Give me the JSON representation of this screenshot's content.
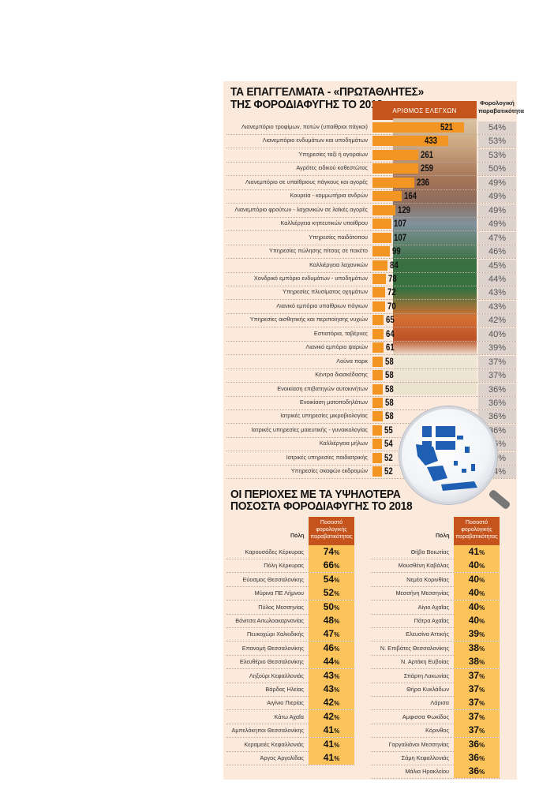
{
  "chart_data": [
    {
      "type": "bar",
      "title": "ΤΑ ΕΠΑΓΓΕΛΜΑΤΑ - «ΠΡΩΤΑΘΛΗΤΕΣ» ΤΗΣ ΦΟΡΟΔΙΑΦΥΓΗΣ ΤΟ 2018",
      "orientation": "horizontal",
      "series_headers": [
        "ΑΡΙΘΜΟΣ ΕΛΕΓΧΩΝ",
        "Φορολογική παραβατικότητα"
      ],
      "categories": [
        "Λιανεμπόριο τροφίμων, ποτών (υπαίθριοι πάγκοι)",
        "Λιανεμπόριο ενδυμάτων και υποδημάτων",
        "Υπηρεσίες ταξί ή αγοραίων",
        "Αγρότες ειδικού καθεστώτος",
        "Λιανεμπόριο σε υπαίθριους πάγκους και αγορές",
        "Κουρεία - κομμωτήρια ανδρών",
        "Λιανεμπόριο φρούτων - λαχανικών σε λαϊκές αγορές",
        "Καλλιέργεια κηπευτικών υπαίθρου",
        "Υπηρεσίες παιδότοπου",
        "Υπηρεσίες πώλησης πίτσας σε πακέτο",
        "Καλλιέργεια λαχανικών",
        "Χονδρικό εμπόριο ενδυμάτων - υποδημάτων",
        "Υπηρεσίες πλυσίματος οχημάτων",
        "Λιανικό εμπόριο υπαίθριων πάγκων",
        "Υπηρεσίες αισθητικής και περιποίησης νυχιών",
        "Εστιατόρια, ταβέρνες",
        "Λιανικό εμπόριο ψαριών",
        "Λούνα παρκ",
        "Κέντρα διασκέδασης",
        "Ενοικίαση επιβατηγών αυτοκινήτων",
        "Ενοικίαση μοτοποδηλάτων",
        "Ιατρικές υπηρεσίες μικροβιολογίας",
        "Ιατρικές υπηρεσίες μαιευτικής - γυναικολογίας",
        "Καλλιέργεια μήλων",
        "Ιατρικές υπηρεσίες παιδιατρικής",
        "Υπηρεσίες σκαφών εκδρομών"
      ],
      "series": [
        {
          "name": "ΑΡΙΘΜΟΣ ΕΛΕΓΧΩΝ",
          "values": [
            521,
            433,
            261,
            259,
            236,
            164,
            129,
            107,
            107,
            99,
            84,
            78,
            72,
            70,
            65,
            64,
            61,
            58,
            58,
            58,
            58,
            58,
            55,
            54,
            52,
            52
          ]
        },
        {
          "name": "Φορολογική παραβατικότητα",
          "unit": "%",
          "values": [
            54,
            53,
            53,
            50,
            49,
            49,
            49,
            49,
            47,
            46,
            45,
            44,
            43,
            43,
            42,
            40,
            39,
            37,
            37,
            36,
            36,
            36,
            36,
            35,
            35,
            34
          ]
        }
      ]
    },
    {
      "type": "table",
      "title": "ΟΙ ΠΕΡΙΟΧΕΣ ΜΕ ΤΑ ΥΨΗΛΟΤΕΡΑ ΠΟΣΟΣΤΑ ΦΟΡΟΔΙΑΦΥΓΗΣ ΤΟ 2018",
      "columns": [
        "Πόλη",
        "Ποσοστό φορολογικής παραβατικότητας"
      ],
      "rows": [
        [
          "Καρουσάδες Κέρκυρας",
          74
        ],
        [
          "Πόλη Κέρκυρας",
          66
        ],
        [
          "Εύοσμος Θεσσαλονίκης",
          54
        ],
        [
          "Μύρινα ΠΕ Λήμνου",
          52
        ],
        [
          "Πύλος Μεσσηνίας",
          50
        ],
        [
          "Βόνιτσα Αιτωλοακαρνανίας",
          48
        ],
        [
          "Πευκοχώρι Χαλκιδικής",
          47
        ],
        [
          "Επανομή Θεσσαλονίκης",
          46
        ],
        [
          "Ελευθέριο Θεσσαλονίκης",
          44
        ],
        [
          "Ληξούρι Κεφαλλονιάς",
          43
        ],
        [
          "Βάρδας Ηλείας",
          43
        ],
        [
          "Αιγίνιο Πιερίας",
          42
        ],
        [
          "Κάτω Αχαΐα",
          42
        ],
        [
          "Αμπελόκηποι Θεσσαλονίκης",
          41
        ],
        [
          "Κεραμειές Κεφαλλονιάς",
          41
        ],
        [
          "Άργος Αργολίδας",
          41
        ],
        [
          "Θήβα Βοιωτίας",
          41
        ],
        [
          "Μουσθένη Καβάλας",
          40
        ],
        [
          "Νεμέα Κορινθίας",
          40
        ],
        [
          "Μεσσήνη Μεσσηνίας",
          40
        ],
        [
          "Αίγιο Αχαΐας",
          40
        ],
        [
          "Πάτρα Αχαΐας",
          40
        ],
        [
          "Ελευσίνα Αττικής",
          39
        ],
        [
          "Ν. Επιβάτες Θεσσαλονίκης",
          38
        ],
        [
          "Ν. Αρτάκη Ευβοίας",
          38
        ],
        [
          "Σπάρτη Λακωνίας",
          37
        ],
        [
          "Θήρα Κυκλάδων",
          37
        ],
        [
          "Λάρισα",
          37
        ],
        [
          "Αμφισσα Φωκίδος",
          37
        ],
        [
          "Κόρινθος",
          37
        ],
        [
          "Γαργαλιάνοι Μεσσηνίας",
          36
        ],
        [
          "Σάμη Κεφαλλονιάς",
          36
        ],
        [
          "Μάλια Ηρακλείου",
          36
        ]
      ]
    }
  ],
  "section1": {
    "title_line1": "ΤΑ ΕΠΑΓΓΕΛΜΑΤΑ - «ΠΡΩΤΑΘΛΗΤΕΣ»",
    "title_line2": "ΤΗΣ ΦΟΡΟΔΙΑΦΥΓΗΣ ΤΟ 2018",
    "count_header": "ΑΡΙΘΜΟΣ ΕΛΕΓΧΩΝ",
    "pct_header_line1": "Φορολογική",
    "pct_header_line2": "παραβατικότητα",
    "rows": [
      {
        "label": "Λιανεμπόριο τροφίμων, ποτών (υπαίθριοι πάγκοι)",
        "count": "521",
        "pct": "54%"
      },
      {
        "label": "Λιανεμπόριο ενδυμάτων και υποδημάτων",
        "count": "433",
        "pct": "53%"
      },
      {
        "label": "Υπηρεσίες ταξί ή αγοραίων",
        "count": "261",
        "pct": "53%"
      },
      {
        "label": "Αγρότες ειδικού καθεστώτος",
        "count": "259",
        "pct": "50%"
      },
      {
        "label": "Λιανεμπόριο σε υπαίθριους πάγκους και αγορές",
        "count": "236",
        "pct": "49%"
      },
      {
        "label": "Κουρεία - κομμωτήρια ανδρών",
        "count": "164",
        "pct": "49%"
      },
      {
        "label": "Λιανεμπόριο φρούτων - λαχανικών σε λαϊκές αγορές",
        "count": "129",
        "pct": "49%"
      },
      {
        "label": "Καλλιέργεια κηπευτικών υπαίθρου",
        "count": "107",
        "pct": "49%"
      },
      {
        "label": "Υπηρεσίες παιδότοπου",
        "count": "107",
        "pct": "47%"
      },
      {
        "label": "Υπηρεσίες πώλησης πίτσας σε πακέτο",
        "count": "99",
        "pct": "46%"
      },
      {
        "label": "Καλλιέργεια λαχανικών",
        "count": "84",
        "pct": "45%"
      },
      {
        "label": "Χονδρικό εμπόριο ενδυμάτων - υποδημάτων",
        "count": "78",
        "pct": "44%"
      },
      {
        "label": "Υπηρεσίες πλυσίματος οχημάτων",
        "count": "72",
        "pct": "43%"
      },
      {
        "label": "Λιανικό εμπόριο υπαίθριων πάγκων",
        "count": "70",
        "pct": "43%"
      },
      {
        "label": "Υπηρεσίες αισθητικής και περιποίησης νυχιών",
        "count": "65",
        "pct": "42%"
      },
      {
        "label": "Εστιατόρια, ταβέρνες",
        "count": "64",
        "pct": "40%"
      },
      {
        "label": "Λιανικό εμπόριο ψαριών",
        "count": "61",
        "pct": "39%"
      },
      {
        "label": "Λούνα παρκ",
        "count": "58",
        "pct": "37%"
      },
      {
        "label": "Κέντρα διασκέδασης",
        "count": "58",
        "pct": "37%"
      },
      {
        "label": "Ενοικίαση επιβατηγών αυτοκινήτων",
        "count": "58",
        "pct": "36%"
      },
      {
        "label": "Ενοικίαση μοτοποδηλάτων",
        "count": "58",
        "pct": "36%"
      },
      {
        "label": "Ιατρικές υπηρεσίες μικροβιολογίας",
        "count": "58",
        "pct": "36%"
      },
      {
        "label": "Ιατρικές υπηρεσίες μαιευτικής - γυναικολογίας",
        "count": "55",
        "pct": "36%"
      },
      {
        "label": "Καλλιέργεια μήλων",
        "count": "54",
        "pct": "35%"
      },
      {
        "label": "Ιατρικές υπηρεσίες παιδιατρικής",
        "count": "52",
        "pct": "35%"
      },
      {
        "label": "Υπηρεσίες σκαφών εκδρομών",
        "count": "52",
        "pct": "34%"
      }
    ]
  },
  "section2": {
    "title_line1": "ΟΙ ΠΕΡΙΟΧΕΣ ΜΕ ΤΑ ΥΨΗΛΟΤΕΡΑ",
    "title_line2": "ΠΟΣΟΣΤΑ ΦΟΡΟΔΙΑΦΥΓΗΣ ΤΟ 2018",
    "city_header": "Πόλη",
    "pct_header_line1": "Ποσοστό",
    "pct_header_line2": "φορολογικής",
    "pct_header_line3": "παραβατικότητας",
    "left": [
      {
        "city": "Καρουσάδες Κέρκυρας",
        "pct": "74"
      },
      {
        "city": "Πόλη Κέρκυρας",
        "pct": "66"
      },
      {
        "city": "Εύοσμος Θεσσαλονίκης",
        "pct": "54"
      },
      {
        "city": "Μύρινα ΠΕ Λήμνου",
        "pct": "52"
      },
      {
        "city": "Πύλος Μεσσηνίας",
        "pct": "50"
      },
      {
        "city": "Βόνιτσα Αιτωλοακαρνανίας",
        "pct": "48"
      },
      {
        "city": "Πευκοχώρι Χαλκιδικής",
        "pct": "47"
      },
      {
        "city": "Επανομή Θεσσαλονίκης",
        "pct": "46"
      },
      {
        "city": "Ελευθέριο Θεσσαλονίκης",
        "pct": "44"
      },
      {
        "city": "Ληξούρι Κεφαλλονιάς",
        "pct": "43"
      },
      {
        "city": "Βάρδας Ηλείας",
        "pct": "43"
      },
      {
        "city": "Αιγίνιο Πιερίας",
        "pct": "42"
      },
      {
        "city": "Κάτω Αχαΐα",
        "pct": "42"
      },
      {
        "city": "Αμπελόκηποι Θεσσαλονίκης",
        "pct": "41"
      },
      {
        "city": "Κεραμειές Κεφαλλονιάς",
        "pct": "41"
      },
      {
        "city": "Άργος Αργολίδας",
        "pct": "41"
      }
    ],
    "right": [
      {
        "city": "Θήβα Βοιωτίας",
        "pct": "41"
      },
      {
        "city": "Μουσθένη Καβάλας",
        "pct": "40"
      },
      {
        "city": "Νεμέα Κορινθίας",
        "pct": "40"
      },
      {
        "city": "Μεσσήνη Μεσσηνίας",
        "pct": "40"
      },
      {
        "city": "Αίγιο Αχαΐας",
        "pct": "40"
      },
      {
        "city": "Πάτρα Αχαΐας",
        "pct": "40"
      },
      {
        "city": "Ελευσίνα Αττικής",
        "pct": "39"
      },
      {
        "city": "Ν. Επιβάτες Θεσσαλονίκης",
        "pct": "38"
      },
      {
        "city": "Ν. Αρτάκη Ευβοίας",
        "pct": "38"
      },
      {
        "city": "Σπάρτη Λακωνίας",
        "pct": "37"
      },
      {
        "city": "Θήρα Κυκλάδων",
        "pct": "37"
      },
      {
        "city": "Λάρισα",
        "pct": "37"
      },
      {
        "city": "Αμφισσα Φωκίδος",
        "pct": "37"
      },
      {
        "city": "Κόρινθος",
        "pct": "37"
      },
      {
        "city": "Γαργαλιάνοι Μεσσηνίας",
        "pct": "36"
      },
      {
        "city": "Σάμη Κεφαλλονιάς",
        "pct": "36"
      },
      {
        "city": "Μάλια Ηρακλείου",
        "pct": "36"
      }
    ],
    "pct_sign": "%"
  },
  "colors": {
    "panel_bg": "#fbe9dc",
    "bar": "#f29523",
    "header": "#c4541c",
    "pct_cell": "#ddd3cc",
    "table_value": "#fbc35a",
    "map_blue": "#1e5fb3"
  }
}
